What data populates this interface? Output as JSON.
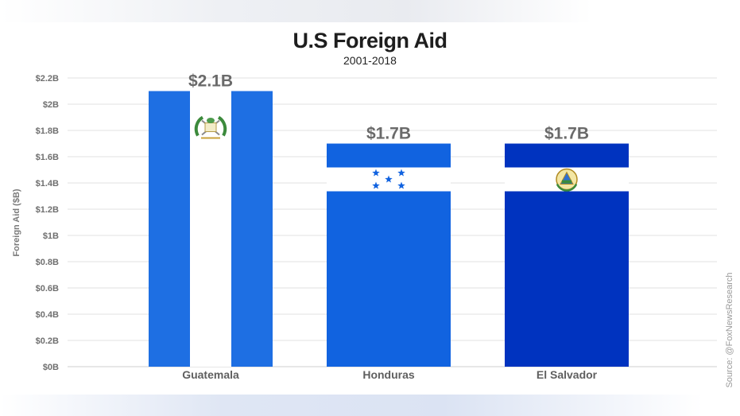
{
  "colors": {
    "guatemala_blue": "#1e6fe3",
    "honduras_blue": "#1163e0",
    "el_salvador_blue": "#0033bf",
    "grid": "#e2e2e2"
  },
  "chart_data": {
    "type": "bar",
    "title": "U.S Foreign Aid",
    "subtitle": "2001-2018",
    "xlabel": "",
    "ylabel": "Foreign Aid ($B)",
    "categories": [
      "Guatemala",
      "Honduras",
      "El Salvador"
    ],
    "values": [
      2.1,
      1.7,
      1.7
    ],
    "data_labels": [
      "$2.1B",
      "$1.7B",
      "$1.7B"
    ],
    "ylim": [
      0,
      2.2
    ],
    "yticks": [
      0,
      0.2,
      0.4,
      0.6,
      0.8,
      1,
      1.2,
      1.4,
      1.6,
      1.8,
      2,
      2.2
    ],
    "ytick_labels": [
      "$0B",
      "$0.2B",
      "$0.4B",
      "$0.6B",
      "$0.8B",
      "$1B",
      "$1.2B",
      "$1.4B",
      "$1.6B",
      "$1.8B",
      "$2B",
      "$2.2B"
    ],
    "grid": true,
    "bar_styles": [
      "flag-guatemala",
      "flag-honduras",
      "flag-el-salvador"
    ],
    "source": "Source: @FoxNewsResearch"
  }
}
